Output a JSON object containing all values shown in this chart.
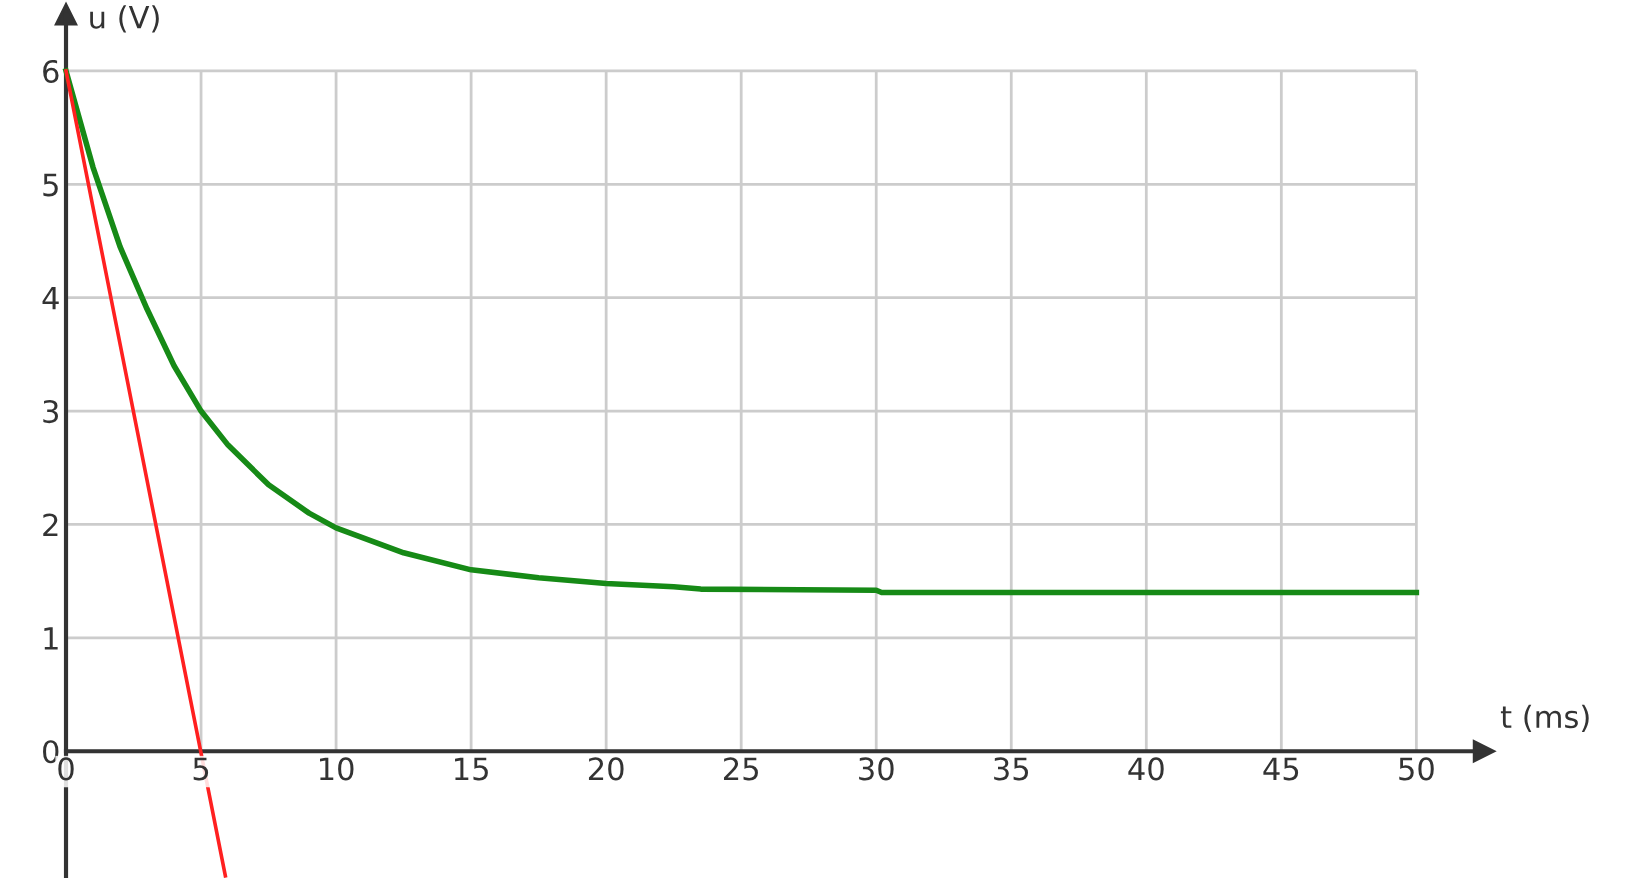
{
  "chart_data": {
    "type": "line",
    "xlabel": "t (ms)",
    "ylabel": "u (V)",
    "xlim": [
      0,
      52.5
    ],
    "ylim": [
      -1.1,
      6.5
    ],
    "xticks": [
      0,
      5,
      10,
      15,
      20,
      25,
      30,
      35,
      40,
      45,
      50
    ],
    "yticks": [
      0,
      1,
      2,
      3,
      4,
      5,
      6
    ],
    "grid": true,
    "legend": false,
    "marker": "none",
    "line_style": "solid",
    "series": [
      {
        "color": "#168a16",
        "x": [
          0,
          1,
          2,
          3,
          4,
          5,
          6,
          7.5,
          9,
          10,
          12.5,
          15,
          17.5,
          20,
          22.5,
          23.5,
          30,
          30.2,
          40,
          50
        ],
        "values": [
          6,
          5.15,
          4.45,
          3.9,
          3.4,
          3.0,
          2.7,
          2.35,
          2.1,
          1.97,
          1.75,
          1.6,
          1.53,
          1.48,
          1.45,
          1.43,
          1.42,
          1.4,
          1.4,
          1.4
        ]
      },
      {
        "color": "#ff2020",
        "x": [
          0,
          5.9
        ],
        "values": [
          6,
          -1.1
        ]
      }
    ]
  }
}
